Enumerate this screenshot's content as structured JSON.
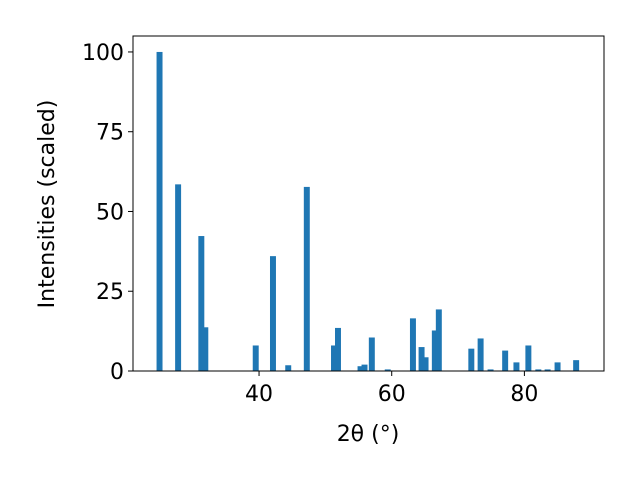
{
  "chart_data": {
    "type": "bar",
    "x_label": "2θ (°)",
    "y_label": "Intensities (scaled)",
    "x": [
      25.0,
      27.8,
      31.3,
      31.9,
      39.5,
      42.1,
      44.4,
      47.2,
      51.3,
      51.9,
      55.3,
      55.9,
      57.0,
      59.4,
      63.2,
      64.5,
      65.1,
      66.5,
      67.1,
      72.0,
      73.4,
      74.9,
      77.1,
      78.8,
      80.6,
      82.1,
      83.5,
      85.0,
      87.8
    ],
    "values": [
      100,
      58.5,
      42.3,
      13.7,
      8,
      36,
      1.8,
      57.7,
      8,
      13.5,
      1.5,
      2,
      10.5,
      0.5,
      16.5,
      7.5,
      4.3,
      12.7,
      19.3,
      7,
      10.2,
      0.5,
      6.4,
      2.7,
      8,
      0.5,
      0.5,
      2.7,
      3.4
    ],
    "color": "#1f77b4",
    "xlim": [
      21,
      92
    ],
    "ylim": [
      0,
      105
    ],
    "xticks": [
      40,
      60,
      80
    ],
    "yticks": [
      0,
      25,
      50,
      75,
      100
    ]
  }
}
